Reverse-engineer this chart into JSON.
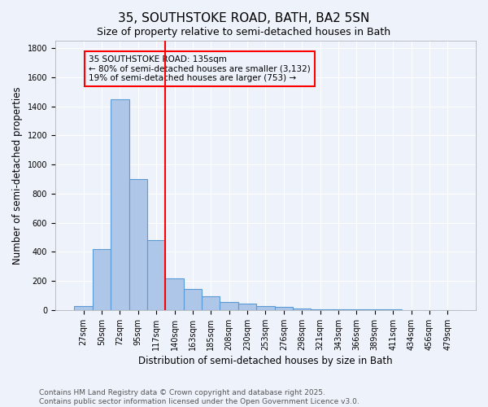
{
  "title": "35, SOUTHSTOKE ROAD, BATH, BA2 5SN",
  "subtitle": "Size of property relative to semi-detached houses in Bath",
  "xlabel": "Distribution of semi-detached houses by size in Bath",
  "ylabel": "Number of semi-detached properties",
  "categories": [
    "27sqm",
    "50sqm",
    "72sqm",
    "95sqm",
    "117sqm",
    "140sqm",
    "163sqm",
    "185sqm",
    "208sqm",
    "230sqm",
    "253sqm",
    "276sqm",
    "298sqm",
    "321sqm",
    "343sqm",
    "366sqm",
    "389sqm",
    "411sqm",
    "434sqm",
    "456sqm",
    "479sqm"
  ],
  "values": [
    30,
    420,
    1450,
    900,
    480,
    215,
    145,
    95,
    55,
    45,
    25,
    20,
    12,
    8,
    6,
    5,
    4,
    3,
    2,
    2,
    1
  ],
  "bar_color": "#aec6e8",
  "bar_edge_color": "#5b9bd5",
  "bar_edge_width": 0.8,
  "vline_index": 5,
  "vline_color": "red",
  "annotation_title": "35 SOUTHSTOKE ROAD: 135sqm",
  "annotation_line1": "← 80% of semi-detached houses are smaller (3,132)",
  "annotation_line2": "19% of semi-detached houses are larger (753) →",
  "annotation_box_color": "red",
  "ylim": [
    0,
    1850
  ],
  "yticks": [
    0,
    200,
    400,
    600,
    800,
    1000,
    1200,
    1400,
    1600,
    1800
  ],
  "footer": "Contains HM Land Registry data © Crown copyright and database right 2025.\nContains public sector information licensed under the Open Government Licence v3.0.",
  "bg_color": "#eef2fb",
  "grid_color": "#ffffff",
  "title_fontsize": 11,
  "subtitle_fontsize": 9,
  "axis_label_fontsize": 8.5,
  "tick_fontsize": 7,
  "annotation_fontsize": 7.5,
  "footer_fontsize": 6.5
}
